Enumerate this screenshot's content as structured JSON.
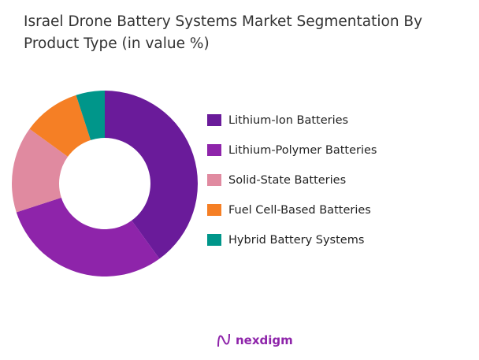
{
  "title": "Israel Drone Battery Systems Market Segmentation By Product Type (in value %)",
  "chart_data": {
    "type": "pie",
    "variant": "donut",
    "title": "Israel Drone Battery Systems Market Segmentation By Product Type (in value %)",
    "legend_position": "right",
    "categories": [
      "Lithium-Ion Batteries",
      "Lithium-Polymer Batteries",
      "Solid-State Batteries",
      "Fuel Cell-Based Batteries",
      "Hybrid Battery Systems"
    ],
    "values": [
      40,
      30,
      15,
      10,
      5
    ],
    "colors": [
      "#6a1b9a",
      "#8e24aa",
      "#e08aa0",
      "#f57f25",
      "#00968a"
    ]
  },
  "logo": {
    "text": "nexdigm"
  }
}
